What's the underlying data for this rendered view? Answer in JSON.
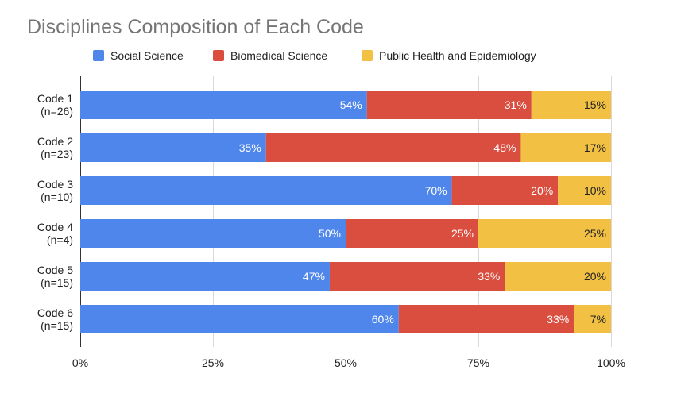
{
  "chart_data": {
    "type": "bar",
    "orientation": "horizontal",
    "stacked": "percent",
    "title": "Disciplines Composition of Each Code",
    "categories": [
      [
        "Code 1",
        "(n=26)"
      ],
      [
        "Code 2",
        "(n=23)"
      ],
      [
        "Code 3",
        "(n=10)"
      ],
      [
        "Code 4",
        "(n=4)"
      ],
      [
        "Code 5",
        "(n=15)"
      ],
      [
        "Code 6",
        "(n=15)"
      ]
    ],
    "series": [
      {
        "name": "Social Science",
        "color": "#4f86ec",
        "label_color": "#ffffff",
        "values": [
          54,
          35,
          70,
          50,
          47,
          60
        ],
        "labels": [
          "54%",
          "35%",
          "70%",
          "50%",
          "47%",
          "60%"
        ]
      },
      {
        "name": "Biomedical Science",
        "color": "#d94e3f",
        "label_color": "#ffffff",
        "values": [
          31,
          48,
          20,
          25,
          33,
          33
        ],
        "labels": [
          "31%",
          "48%",
          "20%",
          "25%",
          "33%",
          "33%"
        ]
      },
      {
        "name": "Public Health and Epidemiology",
        "color": "#f2c144",
        "label_color": "#222222",
        "values": [
          15,
          17,
          10,
          25,
          20,
          7
        ],
        "labels": [
          "15%",
          "17%",
          "10%",
          "25%",
          "20%",
          "7%"
        ]
      }
    ],
    "x_ticks": [
      0,
      25,
      50,
      75,
      100
    ],
    "x_tick_labels": [
      "0%",
      "25%",
      "50%",
      "75%",
      "100%"
    ],
    "xlim": [
      0,
      100
    ],
    "xlabel": "",
    "ylabel": "",
    "grid": true,
    "legend_position": "top"
  }
}
